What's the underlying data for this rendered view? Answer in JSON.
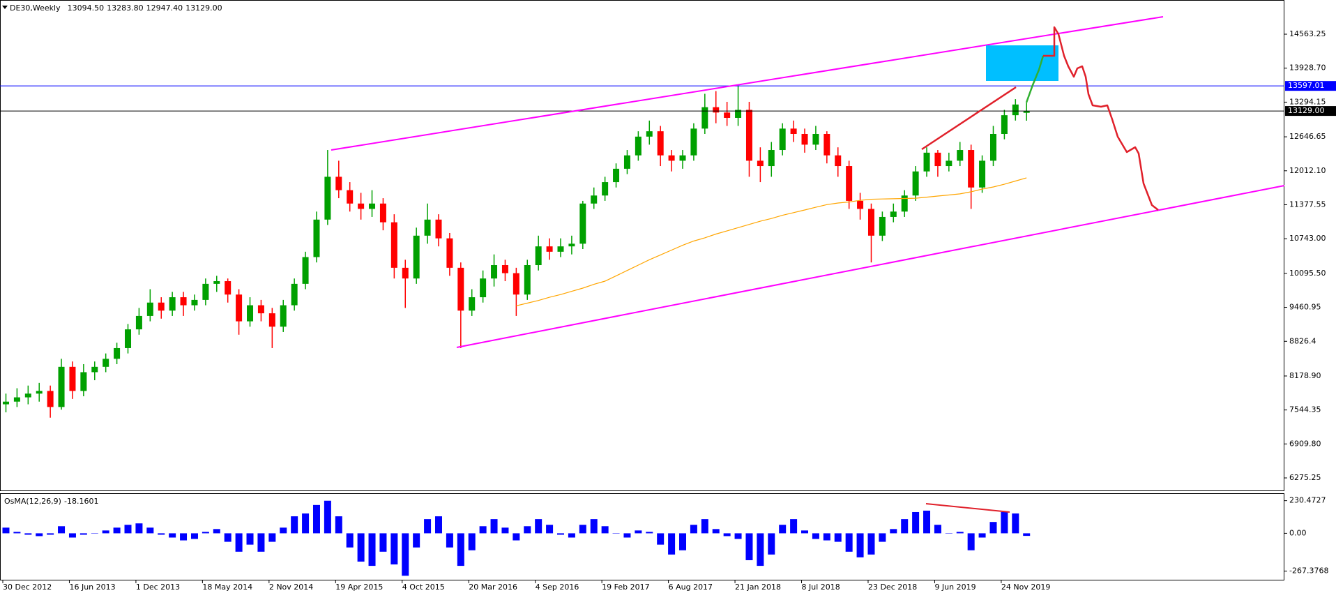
{
  "chart_data": [
    {
      "type": "candlestick",
      "title": "DE30,Weekly",
      "info_labels": [
        "13094.50",
        "13283.80",
        "12947.40",
        "13129.00"
      ],
      "categories": [
        "30 Dec 2012",
        null,
        null,
        null,
        null,
        null,
        "16 Jun 2013",
        null,
        null,
        null,
        null,
        null,
        "1 Dec 2013",
        null,
        null,
        null,
        null,
        null,
        "18 May 2014",
        null,
        null,
        null,
        null,
        null,
        "2 Nov 2014",
        null,
        null,
        null,
        null,
        null,
        "19 Apr 2015",
        null,
        null,
        null,
        null,
        null,
        "4 Oct 2015",
        null,
        null,
        null,
        null,
        null,
        "20 Mar 2016",
        null,
        null,
        null,
        null,
        null,
        "4 Sep 2016",
        null,
        null,
        null,
        null,
        null,
        "19 Feb 2017",
        null,
        null,
        null,
        null,
        null,
        "6 Aug 2017",
        null,
        null,
        null,
        null,
        null,
        "21 Jan 2018",
        null,
        null,
        null,
        null,
        null,
        "8 Jul 2018",
        null,
        null,
        null,
        null,
        null,
        "23 Dec 2018",
        null,
        null,
        null,
        null,
        null,
        "9 Jun 2019",
        null,
        null,
        null,
        null,
        null,
        "24 Nov 2019",
        null,
        null
      ],
      "open": [
        7650,
        7700,
        7780,
        7850,
        7900,
        7600,
        8350,
        7900,
        8250,
        8350,
        8500,
        8700,
        9050,
        9300,
        9550,
        9400,
        9650,
        9500,
        9600,
        9900,
        9950,
        9700,
        9200,
        9500,
        9350,
        9100,
        9500,
        9900,
        10400,
        11100,
        11900,
        11650,
        11400,
        11300,
        11400,
        11050,
        10200,
        10000,
        10800,
        11100,
        10750,
        10200,
        9400,
        9650,
        10000,
        10250,
        10100,
        9700,
        10250,
        10600,
        10500,
        10600,
        10650,
        11400,
        11550,
        11800,
        12050,
        12300,
        12650,
        12750,
        12300,
        12200,
        12300,
        12800,
        13200,
        13100,
        13000,
        13150,
        12200,
        12100,
        12400,
        12800,
        12700,
        12500,
        12700,
        12300,
        12100,
        11450,
        11300,
        10800,
        11150,
        11250,
        11550,
        12000,
        12350,
        12100,
        12200,
        12400,
        11700,
        12200,
        12700,
        13050,
        13094.5
      ],
      "high": [
        7850,
        7950,
        8000,
        8050,
        8000,
        8500,
        8450,
        8400,
        8450,
        8600,
        8800,
        9150,
        9450,
        9800,
        9650,
        9750,
        9750,
        9700,
        10000,
        10050,
        10000,
        9800,
        9650,
        9600,
        9450,
        9600,
        10000,
        10500,
        11250,
        12400,
        12200,
        11800,
        11600,
        11650,
        11500,
        11200,
        10350,
        10950,
        11400,
        11200,
        10850,
        10300,
        9800,
        10150,
        10450,
        10350,
        10200,
        10350,
        10800,
        10750,
        10750,
        10800,
        11450,
        11700,
        11900,
        12150,
        12400,
        12750,
        12950,
        12850,
        12400,
        12400,
        12900,
        13450,
        13500,
        13300,
        13600,
        13300,
        12450,
        12550,
        12900,
        12950,
        12800,
        12850,
        12750,
        12450,
        12200,
        11600,
        11400,
        11250,
        11400,
        11650,
        12100,
        12450,
        12400,
        12350,
        12550,
        12500,
        12300,
        12850,
        13150,
        13350,
        13283.8
      ],
      "low": [
        7500,
        7600,
        7650,
        7700,
        7400,
        7550,
        7750,
        7800,
        8100,
        8250,
        8400,
        8600,
        8950,
        9200,
        9250,
        9300,
        9300,
        9400,
        9500,
        9750,
        9550,
        8950,
        9100,
        9200,
        8700,
        9000,
        9400,
        9800,
        10300,
        11000,
        11500,
        11250,
        11100,
        11150,
        10900,
        10000,
        9450,
        9900,
        10650,
        10600,
        10050,
        8700,
        9300,
        9550,
        9850,
        9950,
        9300,
        9600,
        10150,
        10350,
        10400,
        10450,
        10550,
        11300,
        11450,
        11700,
        11950,
        12200,
        12500,
        12100,
        12000,
        12050,
        12200,
        12700,
        12900,
        12850,
        12850,
        11900,
        11800,
        11900,
        12300,
        12550,
        12350,
        12400,
        12150,
        11900,
        11300,
        11100,
        10300,
        10700,
        11050,
        11150,
        11450,
        11900,
        11900,
        12000,
        12100,
        11300,
        11600,
        12100,
        12600,
        12950,
        12947.4
      ],
      "close": [
        7700,
        7780,
        7850,
        7900,
        7600,
        8350,
        7900,
        8250,
        8350,
        8500,
        8700,
        9050,
        9300,
        9550,
        9400,
        9650,
        9500,
        9600,
        9900,
        9950,
        9700,
        9200,
        9500,
        9350,
        9100,
        9500,
        9900,
        10400,
        11100,
        11900,
        11650,
        11400,
        11300,
        11400,
        11050,
        10200,
        10000,
        10800,
        11100,
        10750,
        10200,
        9400,
        9650,
        10000,
        10250,
        10100,
        9700,
        10250,
        10600,
        10500,
        10600,
        10650,
        11400,
        11550,
        11800,
        12050,
        12300,
        12650,
        12750,
        12300,
        12200,
        12300,
        12800,
        13200,
        13100,
        13000,
        13150,
        12200,
        12100,
        12400,
        12800,
        12700,
        12500,
        12700,
        12300,
        12100,
        11450,
        11300,
        10800,
        11150,
        11250,
        11550,
        12000,
        12350,
        12100,
        12200,
        12400,
        11700,
        12200,
        12700,
        13050,
        13250,
        13129
      ],
      "up_color": "#00a000",
      "down_color": "#ff0000",
      "ma": {
        "color": "#ffa500",
        "values": [
          null,
          null,
          null,
          null,
          null,
          null,
          null,
          null,
          null,
          null,
          null,
          null,
          null,
          null,
          null,
          null,
          null,
          null,
          null,
          null,
          null,
          null,
          null,
          null,
          null,
          null,
          null,
          null,
          null,
          null,
          null,
          null,
          null,
          null,
          null,
          null,
          null,
          null,
          null,
          null,
          null,
          null,
          null,
          null,
          null,
          null,
          9490,
          9540,
          9590,
          9650,
          9700,
          9760,
          9820,
          9890,
          9950,
          10050,
          10150,
          10250,
          10350,
          10440,
          10530,
          10620,
          10700,
          10760,
          10830,
          10890,
          10950,
          11010,
          11070,
          11120,
          11180,
          11230,
          11280,
          11330,
          11380,
          11410,
          11430,
          11460,
          11480,
          11485,
          11490,
          11495,
          11500,
          11520,
          11540,
          11560,
          11580,
          11620,
          11670,
          11710,
          11760,
          11820,
          11880
        ]
      },
      "hlines": [
        {
          "value": 13597.01,
          "label": "13597.01",
          "color": "#0000ff"
        },
        {
          "value": 13129,
          "label": "13129.00",
          "color": "#000000"
        }
      ],
      "ylim": [
        6028,
        15202
      ],
      "yticks": [
        14563.25,
        {
          "value": 13928.7,
          "label": "13928.70"
        },
        13294.15,
        12646.65,
        {
          "value": 12012.1,
          "label": "12012.10"
        },
        11377.55,
        {
          "value": 10743,
          "label": "10743.00"
        },
        {
          "value": 10095.5,
          "label": "10095.50"
        },
        9460.95,
        8826.4,
        {
          "value": 8178.9,
          "label": "8178.90"
        },
        7544.35,
        {
          "value": 6909.8,
          "label": "6909.80"
        },
        6275.25
      ]
    },
    {
      "type": "bar",
      "title": "OsMA(12,26,9)",
      "last_label": "-18.1601",
      "color": "#0000ff",
      "values": [
        40,
        10,
        -10,
        -20,
        -10,
        50,
        -30,
        -10,
        0,
        20,
        40,
        60,
        70,
        40,
        -10,
        -30,
        -50,
        -40,
        10,
        30,
        -60,
        -130,
        -80,
        -130,
        -60,
        40,
        120,
        140,
        200,
        230,
        120,
        -100,
        -200,
        -230,
        -130,
        -220,
        -300,
        -100,
        100,
        120,
        -100,
        -230,
        -120,
        50,
        100,
        40,
        -50,
        50,
        100,
        60,
        -10,
        -30,
        60,
        100,
        50,
        0,
        -30,
        20,
        10,
        -80,
        -150,
        -120,
        60,
        100,
        30,
        -20,
        -40,
        -190,
        -230,
        -150,
        60,
        100,
        20,
        -40,
        -50,
        -60,
        -130,
        -170,
        -150,
        -60,
        30,
        100,
        150,
        160,
        60,
        0,
        10,
        -120,
        -30,
        80,
        150,
        140,
        -18.1601
      ],
      "ylim": [
        -333,
        278
      ],
      "yticks": [
        230.4727,
        {
          "value": 0,
          "label": "0.00"
        },
        -267.3768
      ]
    }
  ]
}
